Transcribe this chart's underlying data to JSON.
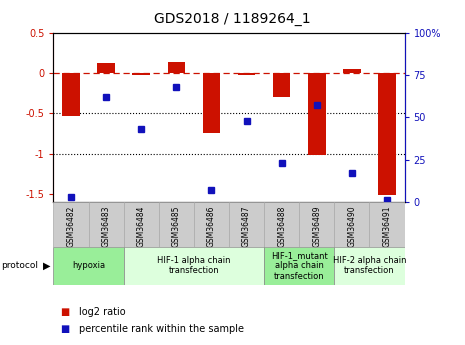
{
  "title": "GDS2018 / 1189264_1",
  "samples": [
    "GSM36482",
    "GSM36483",
    "GSM36484",
    "GSM36485",
    "GSM36486",
    "GSM36487",
    "GSM36488",
    "GSM36489",
    "GSM36490",
    "GSM36491"
  ],
  "log2_ratio": [
    -0.53,
    0.13,
    -0.02,
    0.14,
    -0.75,
    -0.02,
    -0.3,
    -1.02,
    0.05,
    -1.52
  ],
  "percentile_rank": [
    3,
    62,
    43,
    68,
    7,
    48,
    23,
    57,
    17,
    1
  ],
  "ylim_left": [
    -1.6,
    0.5
  ],
  "ylim_right": [
    0,
    100
  ],
  "bar_color": "#cc1100",
  "dot_color": "#1111bb",
  "dashed_line_color": "#cc1100",
  "dotted_line_color": "#000000",
  "bg_color": "#ffffff",
  "protocol_groups": [
    {
      "label": "hypoxia",
      "start": 0,
      "end": 1,
      "color": "#99ee99"
    },
    {
      "label": "HIF-1 alpha chain\ntransfection",
      "start": 2,
      "end": 5,
      "color": "#ddffdd"
    },
    {
      "label": "HIF-1_mutant\nalpha chain\ntransfection",
      "start": 6,
      "end": 7,
      "color": "#99ee99"
    },
    {
      "label": "HIF-2 alpha chain\ntransfection",
      "start": 8,
      "end": 9,
      "color": "#ddffdd"
    }
  ],
  "legend_bar_label": "log2 ratio",
  "legend_dot_label": "percentile rank within the sample",
  "tick_fontsize": 7,
  "title_fontsize": 10,
  "sample_fontsize": 5.5,
  "proto_fontsize": 6,
  "legend_fontsize": 7
}
